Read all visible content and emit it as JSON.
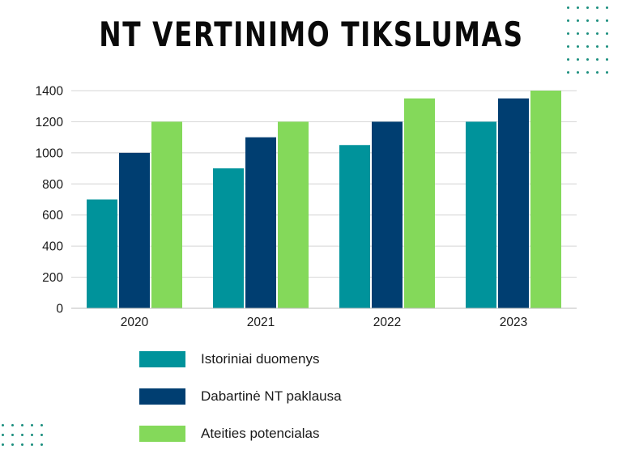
{
  "title": "NT VERTINIMO TIKSLUMAS",
  "colors": {
    "teal": "#00939b",
    "navy": "#003e71",
    "green": "#84d95a",
    "grid": "#d4d4d4",
    "dots": "#1c8f7f"
  },
  "chart_data": {
    "type": "bar",
    "title": "NT VERTINIMO TIKSLUMAS",
    "categories": [
      "2020",
      "2021",
      "2022",
      "2023"
    ],
    "series": [
      {
        "name": "Istoriniai duomenys",
        "color": "#00939b",
        "values": [
          700,
          900,
          1050,
          1200
        ]
      },
      {
        "name": "Dabartinė NT paklausa",
        "color": "#003e71",
        "values": [
          1000,
          1100,
          1200,
          1350
        ]
      },
      {
        "name": "Ateities potencialas",
        "color": "#84d95a",
        "values": [
          1200,
          1200,
          1350,
          1400
        ]
      }
    ],
    "ylim": [
      0,
      1400
    ],
    "yticks": [
      "0",
      "200",
      "400",
      "600",
      "800",
      "1000",
      "1200",
      "1400"
    ],
    "grid": true,
    "legend_position": "bottom"
  }
}
